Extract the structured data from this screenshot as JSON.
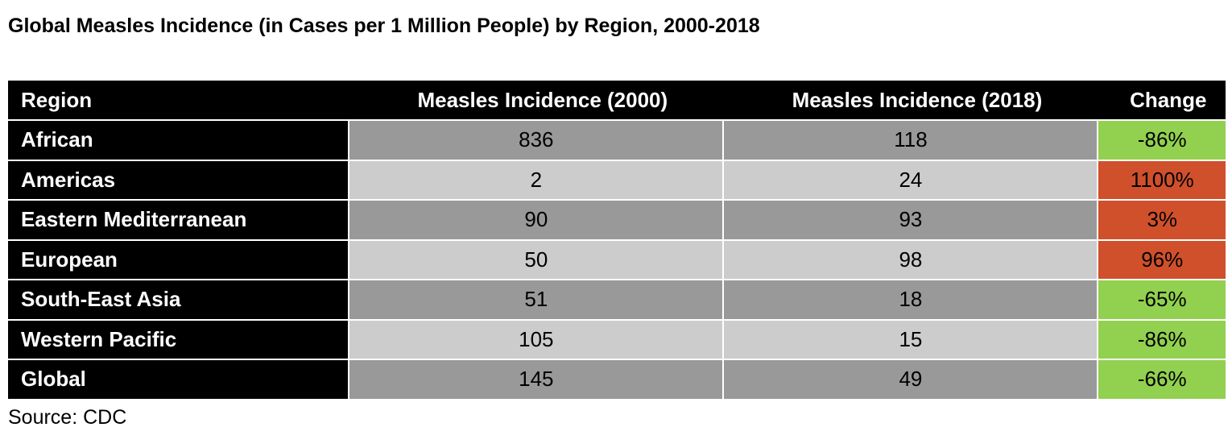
{
  "title": "Global Measles Incidence (in Cases per 1 Million People) by Region, 2000-2018",
  "source": "Source: CDC",
  "colors": {
    "increase": "#d0502c",
    "decrease": "#92d050",
    "header": "#000000",
    "row_dark": "#999999",
    "row_light": "#cccccc"
  },
  "chart_data": {
    "type": "table",
    "title": "Global Measles Incidence (in Cases per 1 Million People) by Region, 2000-2018",
    "columns": [
      "Region",
      "Measles Incidence (2000)",
      "Measles Incidence (2018)",
      "Change"
    ],
    "rows": [
      {
        "region": "African",
        "y2000": "836",
        "y2018": "118",
        "change": "-86%",
        "dir": "down"
      },
      {
        "region": "Americas",
        "y2000": "2",
        "y2018": "24",
        "change": "1100%",
        "dir": "up"
      },
      {
        "region": "Eastern Mediterranean",
        "y2000": "90",
        "y2018": "93",
        "change": "3%",
        "dir": "up"
      },
      {
        "region": "European",
        "y2000": "50",
        "y2018": "98",
        "change": "96%",
        "dir": "up"
      },
      {
        "region": "South-East Asia",
        "y2000": "51",
        "y2018": "18",
        "change": "-65%",
        "dir": "down"
      },
      {
        "region": "Western Pacific",
        "y2000": "105",
        "y2018": "15",
        "change": "-86%",
        "dir": "down"
      },
      {
        "region": "Global",
        "y2000": "145",
        "y2018": "49",
        "change": "-66%",
        "dir": "down"
      }
    ]
  }
}
